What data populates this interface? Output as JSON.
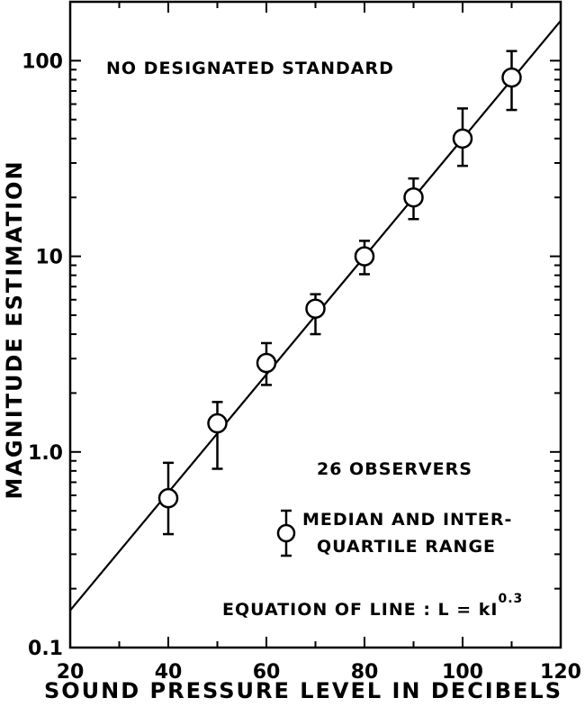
{
  "chart_data": {
    "type": "scatter",
    "title": "",
    "xlabel": "SOUND PRESSURE LEVEL IN DECIBELS",
    "ylabel": "MAGNITUDE ESTIMATION",
    "xlim": [
      20,
      120
    ],
    "ylim": [
      0.1,
      200
    ],
    "yscale": "log",
    "x_ticks": [
      20,
      40,
      60,
      80,
      100,
      120
    ],
    "x_tick_labels": [
      "20",
      "40",
      "60",
      "80",
      "100",
      "120"
    ],
    "y_ticks": [
      0.1,
      1.0,
      10,
      100
    ],
    "y_tick_labels": [
      "0.1",
      "1.0",
      "10",
      "100"
    ],
    "grid": false,
    "series": [
      {
        "points": [
          {
            "x": 40,
            "y": 0.58,
            "q1": 0.38,
            "q3": 0.88
          },
          {
            "x": 50,
            "y": 1.4,
            "q1": 0.82,
            "q3": 1.8
          },
          {
            "x": 60,
            "y": 2.85,
            "q1": 2.2,
            "q3": 3.6
          },
          {
            "x": 70,
            "y": 5.4,
            "q1": 4.0,
            "q3": 6.4
          },
          {
            "x": 80,
            "y": 10,
            "q1": 8.1,
            "q3": 12
          },
          {
            "x": 90,
            "y": 20,
            "q1": 15.5,
            "q3": 25
          },
          {
            "x": 100,
            "y": 40,
            "q1": 29,
            "q3": 57
          },
          {
            "x": 110,
            "y": 82,
            "q1": 56,
            "q3": 112
          }
        ]
      }
    ],
    "fit_line": {
      "x": [
        20,
        120
      ],
      "y": [
        0.155,
        160
      ]
    },
    "annotations": {
      "standard": "NO DESIGNATED STANDARD",
      "observers": "26 OBSERVERS",
      "legend_line1": "MEDIAN AND INTER-",
      "legend_line2": "QUARTILE RANGE",
      "equation_prefix": "EQUATION OF LINE : L = kI",
      "equation_exponent": "0.3"
    }
  }
}
